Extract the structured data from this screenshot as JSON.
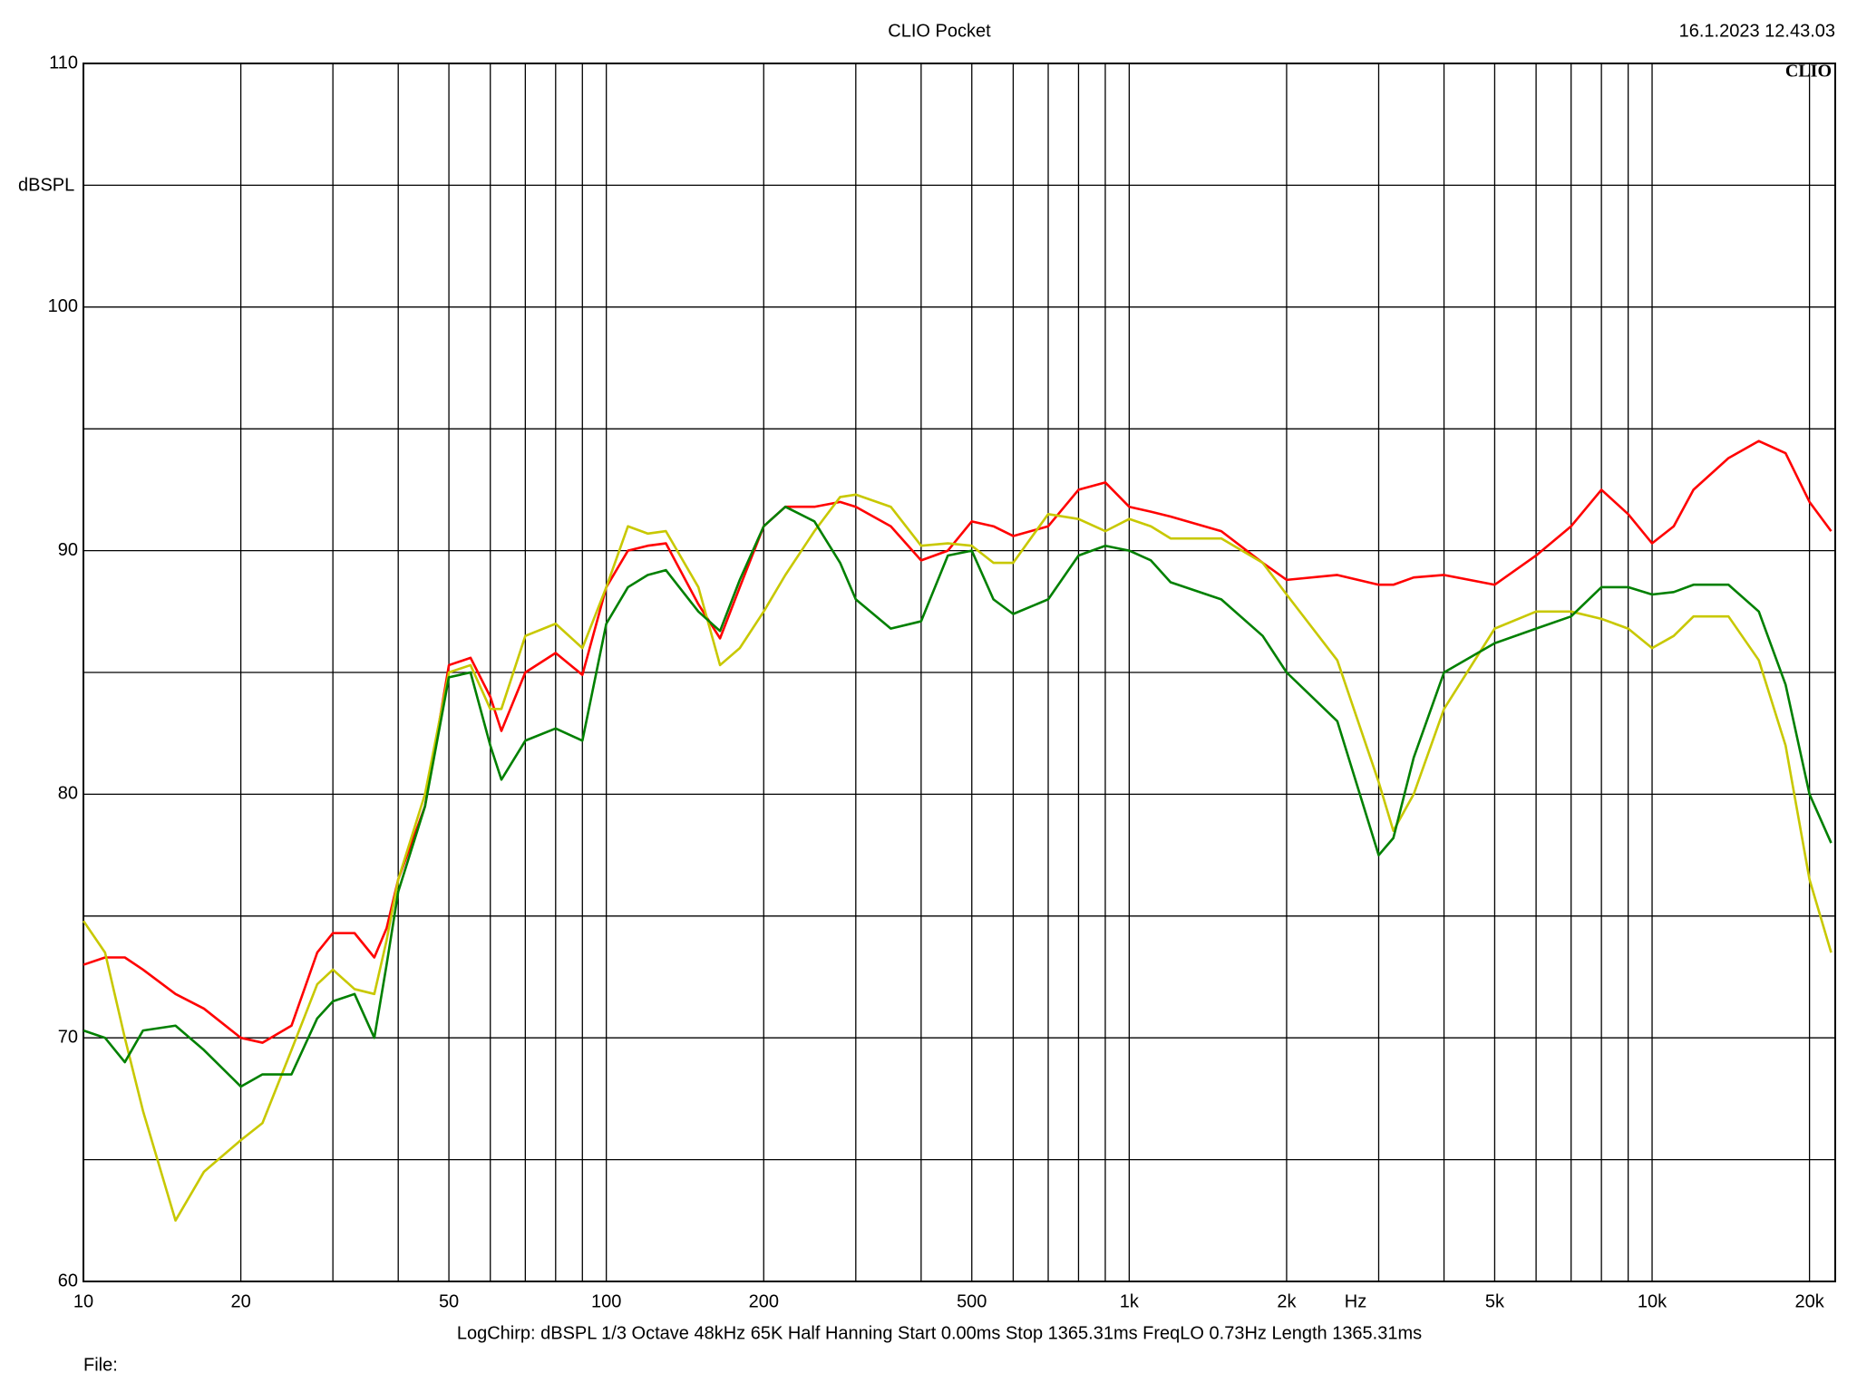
{
  "chart_data": {
    "type": "line",
    "title": "CLIO Pocket",
    "timestamp": "16.1.2023 12.43.03",
    "logo": "CLIO",
    "y_label": "dBSPL",
    "x_label": "Hz",
    "footer": "LogChirp:  dBSPL  1/3 Octave  48kHz  65K  Half Hanning  Start 0.00ms  Stop 1365.31ms  FreqLO 0.73Hz  Length 1365.31ms",
    "file_label": "File:",
    "xscale": "log",
    "grid": true,
    "xlim": [
      10,
      22400
    ],
    "ylim": [
      60,
      110
    ],
    "xticks": [
      10,
      20,
      50,
      100,
      200,
      500,
      {
        "value": 1000,
        "label": "1k"
      },
      {
        "value": 2000,
        "label": "2k"
      },
      {
        "value": 5000,
        "label": "5k"
      },
      {
        "value": 10000,
        "label": "10k"
      },
      {
        "value": 20000,
        "label": "20k"
      }
    ],
    "xminor": [
      30,
      40,
      60,
      70,
      80,
      90,
      300,
      400,
      600,
      700,
      800,
      900,
      3000,
      4000,
      6000,
      7000,
      8000,
      9000
    ],
    "yticks": [
      60,
      70,
      80,
      90,
      100,
      110
    ],
    "yminor": [
      65,
      75,
      85,
      95,
      105
    ],
    "x": [
      10,
      11,
      12,
      13,
      15,
      17,
      20,
      22,
      25,
      28,
      30,
      33,
      36,
      38,
      40,
      45,
      50,
      55,
      60,
      63,
      70,
      80,
      90,
      100,
      110,
      120,
      130,
      150,
      165,
      180,
      200,
      220,
      250,
      280,
      300,
      350,
      400,
      450,
      500,
      550,
      600,
      700,
      800,
      900,
      1000,
      1100,
      1200,
      1500,
      1800,
      2000,
      2500,
      3000,
      3200,
      3500,
      4000,
      5000,
      6000,
      7000,
      8000,
      9000,
      10000,
      11000,
      12000,
      14000,
      16000,
      18000,
      20000,
      22000
    ],
    "series": [
      {
        "color": "#ff0000",
        "values": [
          73.0,
          73.3,
          73.3,
          72.8,
          71.8,
          71.2,
          70.0,
          69.8,
          70.5,
          73.5,
          74.3,
          74.3,
          73.3,
          74.5,
          76.5,
          79.5,
          85.3,
          85.6,
          84.0,
          82.6,
          85.0,
          85.8,
          84.9,
          88.5,
          90.0,
          90.2,
          90.3,
          87.8,
          86.4,
          88.5,
          91.0,
          91.8,
          91.8,
          92.0,
          91.8,
          91.0,
          89.6,
          90.0,
          91.2,
          91.0,
          90.6,
          91.0,
          92.5,
          92.8,
          91.8,
          91.6,
          91.4,
          90.8,
          89.5,
          88.8,
          89.0,
          88.6,
          88.6,
          88.9,
          89.0,
          88.6,
          89.8,
          91.0,
          92.5,
          91.5,
          90.3,
          91.0,
          92.5,
          93.8,
          94.5,
          94.0,
          92.0,
          90.8
        ]
      },
      {
        "color": "#c8c800",
        "values": [
          74.8,
          73.5,
          70.0,
          67.0,
          62.5,
          64.5,
          65.8,
          66.5,
          69.5,
          72.2,
          72.8,
          72.0,
          71.8,
          74.0,
          76.5,
          80.0,
          85.0,
          85.3,
          83.5,
          83.5,
          86.5,
          87.0,
          86.0,
          88.5,
          91.0,
          90.7,
          90.8,
          88.5,
          85.3,
          86.0,
          87.5,
          89.0,
          90.8,
          92.2,
          92.3,
          91.8,
          90.2,
          90.3,
          90.2,
          89.5,
          89.5,
          91.5,
          91.3,
          90.8,
          91.3,
          91.0,
          90.5,
          90.5,
          89.5,
          88.2,
          85.5,
          80.5,
          78.5,
          80.0,
          83.5,
          86.8,
          87.5,
          87.5,
          87.2,
          86.8,
          86.0,
          86.5,
          87.3,
          87.3,
          85.5,
          82.0,
          76.5,
          73.5
        ]
      },
      {
        "color": "#008000",
        "values": [
          70.3,
          70.0,
          69.0,
          70.3,
          70.5,
          69.5,
          68.0,
          68.5,
          68.5,
          70.8,
          71.5,
          71.8,
          70.0,
          73.0,
          76.0,
          79.5,
          84.8,
          85.0,
          82.0,
          80.6,
          82.2,
          82.7,
          82.2,
          87.0,
          88.5,
          89.0,
          89.2,
          87.5,
          86.7,
          88.8,
          91.0,
          91.8,
          91.2,
          89.5,
          88.0,
          86.8,
          87.1,
          89.8,
          90.0,
          88.0,
          87.4,
          88.0,
          89.8,
          90.2,
          90.0,
          89.6,
          88.7,
          88.0,
          86.5,
          85.0,
          83.0,
          77.5,
          78.2,
          81.5,
          85.0,
          86.2,
          86.8,
          87.3,
          88.5,
          88.5,
          88.2,
          88.3,
          88.6,
          88.6,
          87.5,
          84.5,
          80.0,
          78.0
        ]
      }
    ]
  }
}
